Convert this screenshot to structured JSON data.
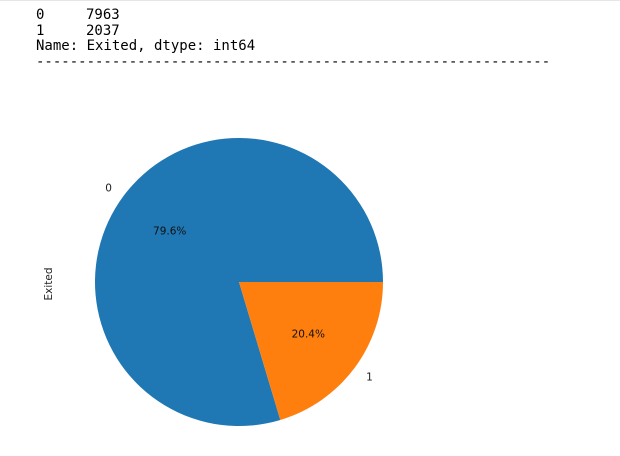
{
  "output": {
    "rows": [
      {
        "key": "0",
        "value": "7963"
      },
      {
        "key": "1",
        "value": "2037"
      }
    ],
    "meta_line": "Name: Exited, dtype: int64",
    "separator": "-------------------------------------------------------------"
  },
  "chart_data": {
    "type": "pie",
    "title": "",
    "ylabel": "Exited",
    "categories": [
      "0",
      "1"
    ],
    "values": [
      7963,
      2037
    ],
    "percent_labels": [
      "79.6%",
      "20.4%"
    ],
    "colors": [
      "#1f77b4",
      "#ff7f0e"
    ],
    "start_angle_deg": 0,
    "direction": "counterclockwise",
    "legend": "none"
  }
}
